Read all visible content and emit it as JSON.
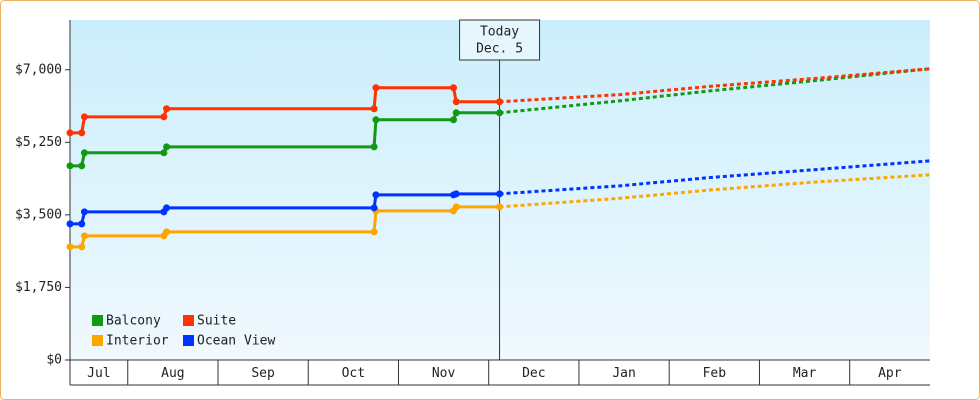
{
  "chart_data": {
    "type": "line",
    "x": [
      7.36,
      7.49,
      7.52,
      8.4,
      8.43,
      10.73,
      10.75,
      11.61,
      11.64,
      12.12
    ],
    "forecast_x": [
      12.12,
      13.45,
      14.45,
      15.67,
      16.89
    ],
    "series": [
      {
        "name": "Balcony",
        "color": "#119911",
        "values": [
          4683,
          4683,
          4997,
          4997,
          5141,
          5141,
          5793,
          5793,
          5962,
          5962
        ],
        "forecast": [
          5962,
          6250,
          6490,
          6750,
          7024
        ]
      },
      {
        "name": "Suite",
        "color": "#ff3300",
        "values": [
          5479,
          5479,
          5865,
          5865,
          6059,
          6059,
          6566,
          6566,
          6228,
          6228
        ],
        "forecast": [
          6228,
          6400,
          6600,
          6800,
          7024
        ]
      },
      {
        "name": "Interior",
        "color": "#ffa500",
        "values": [
          2728,
          2728,
          2993,
          2993,
          3090,
          3090,
          3597,
          3597,
          3693,
          3693
        ],
        "forecast": [
          3693,
          3900,
          4100,
          4300,
          4466
        ]
      },
      {
        "name": "Ocean View",
        "color": "#0033ff",
        "values": [
          3283,
          3283,
          3572,
          3572,
          3669,
          3669,
          3983,
          3983,
          4007,
          4007
        ],
        "forecast": [
          4007,
          4200,
          4400,
          4600,
          4803
        ]
      }
    ],
    "xlim": [
      7.36,
      16.89
    ],
    "xticks": [
      8,
      9,
      10,
      11,
      12,
      13,
      14,
      15,
      16
    ],
    "months": [
      "Jul",
      "Aug",
      "Sep",
      "Oct",
      "Nov",
      "Dec",
      "Jan",
      "Feb",
      "Mar",
      "Apr"
    ],
    "ylim": [
      0,
      8200
    ],
    "yticks": [
      {
        "value": 0,
        "label": "$0"
      },
      {
        "value": 1750,
        "label": "$1,750"
      },
      {
        "value": 3500,
        "label": "$3,500"
      },
      {
        "value": 5250,
        "label": "$5,250"
      },
      {
        "value": 7000,
        "label": "$7,000"
      }
    ],
    "annotation": {
      "x": 12.12,
      "lines": [
        "Today",
        "Dec. 5"
      ]
    },
    "legend": "lower left"
  }
}
